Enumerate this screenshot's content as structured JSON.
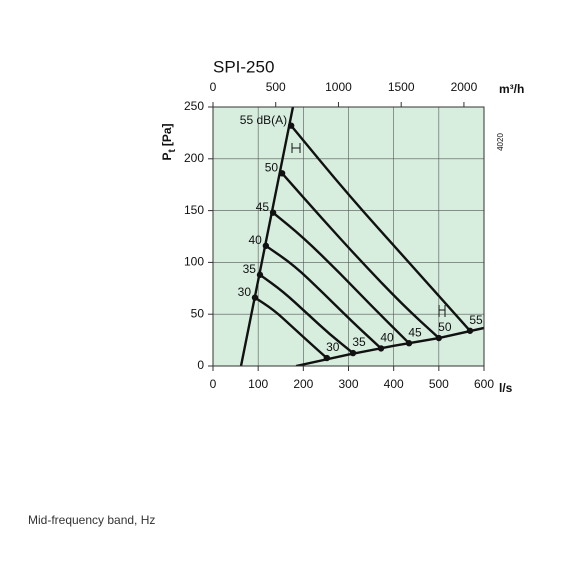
{
  "chart_data": {
    "type": "line",
    "title": "SPI-250",
    "x_label": "l/s",
    "x2_label": "m³/h",
    "y_label": {
      "symbol": "P",
      "subscript": "t",
      "unit": "[Pa]"
    },
    "side_note": "4020",
    "footer": "Mid-frequency band, Hz",
    "xlim": [
      0,
      600
    ],
    "xticks": [
      0,
      100,
      200,
      300,
      400,
      500,
      600
    ],
    "x2lim": [
      0,
      2160
    ],
    "x2ticks": [
      0,
      500,
      1000,
      1500,
      2000
    ],
    "ylim": [
      0,
      250
    ],
    "yticks": [
      0,
      50,
      100,
      150,
      200,
      250
    ],
    "grid": true,
    "plot_background": "#d7eedf",
    "series": [
      {
        "name": "55 dB(A)",
        "end_label": "55",
        "color": "#111111",
        "x": [
          173,
          300,
          440,
          569
        ],
        "y": [
          232,
          165,
          97,
          34
        ]
      },
      {
        "name": "50",
        "end_label": "50",
        "color": "#111111",
        "x": [
          153,
          240,
          330,
          420,
          500
        ],
        "y": [
          186,
          143,
          100,
          59,
          27
        ]
      },
      {
        "name": "45",
        "end_label": "45",
        "color": "#111111",
        "x": [
          133,
          200,
          280,
          360,
          434
        ],
        "y": [
          148,
          124,
          90,
          54,
          22
        ]
      },
      {
        "name": "40",
        "end_label": "40",
        "color": "#111111",
        "x": [
          117,
          180,
          245,
          310,
          372
        ],
        "y": [
          116,
          97,
          70,
          42,
          17
        ]
      },
      {
        "name": "35",
        "end_label": "35",
        "color": "#111111",
        "x": [
          104,
          155,
          210,
          260,
          310
        ],
        "y": [
          88,
          72,
          50,
          30,
          12.5
        ]
      },
      {
        "name": "30",
        "end_label": "30",
        "color": "#111111",
        "x": [
          93,
          135,
          175,
          215,
          252
        ],
        "y": [
          66,
          54,
          38,
          22,
          7.7
        ]
      }
    ],
    "boundary_lines": [
      {
        "x": [
          62,
          177
        ],
        "y": [
          0,
          250
        ]
      },
      {
        "x": [
          184,
          300,
          400,
          500,
          600
        ],
        "y": [
          0,
          11,
          19.5,
          27,
          36.7
        ]
      }
    ]
  }
}
